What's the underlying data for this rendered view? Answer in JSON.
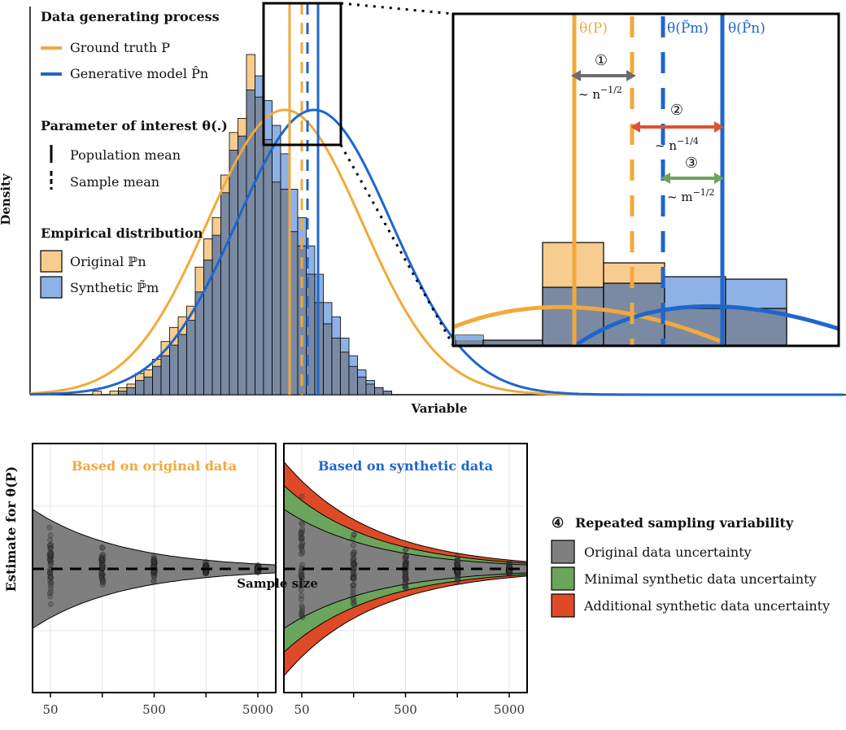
{
  "colors": {
    "ground_truth": "#F2A93B",
    "generative": "#1F66CC",
    "original_fill": "#F7CC8F",
    "synthetic_fill": "#8EB2E6",
    "overlap_fill": "#7A8AA3",
    "grey_arrow": "#6E6E6E",
    "red_arrow": "#E05233",
    "green_arrow": "#6FA35A",
    "band_grey": "#7F7F7F",
    "band_green": "#6BA55B",
    "band_red": "#DE4A28"
  },
  "legend": {
    "dgp_title": "Data generating process",
    "ground_truth_label": "Ground truth P",
    "generative_label": "Generative model P̂n",
    "param_title": "Parameter of interest θ(.)",
    "population_mean_label": "Population mean",
    "sample_mean_label": "Sample mean",
    "empirical_title": "Empirical distribution",
    "original_label": "Original ℙn",
    "synthetic_label": "Synthetic ℙ̃m"
  },
  "inset": {
    "theta_p_label": "θ(P)",
    "theta_pm_label": "θ(P̃m)",
    "theta_pn_label": "θ(P̂n)",
    "marker_1": "①",
    "rate_1": "~ n",
    "rate_1_exp": "−1/2",
    "marker_2": "②",
    "rate_2": "~ n",
    "rate_2_exp": "−1/4",
    "marker_3": "③",
    "rate_3": "~ m",
    "rate_3_exp": "−1/2"
  },
  "chart_data": [
    {
      "type": "bar",
      "title": "",
      "xlabel": "Variable",
      "ylabel": "Density",
      "description_of_axes": "no tick labels",
      "series": [
        {
          "name": "Original ℙn",
          "values": [
            0.01,
            0.0,
            0.01,
            0.02,
            0.03,
            0.06,
            0.07,
            0.1,
            0.15,
            0.19,
            0.22,
            0.25,
            0.36,
            0.44,
            0.5,
            0.62,
            0.74,
            0.78,
            0.96,
            0.84,
            0.72,
            0.6,
            0.58,
            0.46,
            0.42,
            0.34,
            0.26,
            0.2,
            0.16,
            0.12,
            0.08,
            0.05,
            0.03,
            0.02,
            0.01
          ]
        },
        {
          "name": "Synthetic ℙ̃m",
          "values": [
            0.0,
            0.0,
            0.0,
            0.01,
            0.02,
            0.04,
            0.05,
            0.08,
            0.11,
            0.14,
            0.17,
            0.21,
            0.29,
            0.38,
            0.45,
            0.57,
            0.69,
            0.73,
            0.86,
            0.9,
            0.83,
            0.76,
            0.68,
            0.58,
            0.5,
            0.42,
            0.34,
            0.26,
            0.22,
            0.16,
            0.11,
            0.07,
            0.04,
            0.02,
            0.01
          ]
        }
      ],
      "curves": [
        {
          "name": "Ground truth P",
          "mean": 0.0,
          "sd": 1.0
        },
        {
          "name": "Generative model P̂n",
          "mean": 0.25,
          "sd": 1.0
        }
      ]
    },
    {
      "type": "scatter",
      "panel_title": "Based on original data",
      "xlabel": "Sample size",
      "ylabel": "Estimate for θ(P)",
      "x_scale": "log",
      "x_ticks": [
        "50",
        "500",
        "5000"
      ],
      "sample_sizes": [
        50,
        158,
        500,
        1581,
        5000
      ],
      "bands": [
        {
          "name": "Original data uncertainty",
          "halfwidth_at_50": 0.4
        }
      ]
    },
    {
      "type": "scatter",
      "panel_title": "Based on synthetic data",
      "xlabel": "Sample size",
      "ylabel": "Estimate for θ(P)",
      "x_scale": "log",
      "x_ticks": [
        "50",
        "500",
        "5000"
      ],
      "sample_sizes": [
        50,
        158,
        500,
        1581,
        5000
      ],
      "bands": [
        {
          "name": "Original data uncertainty",
          "halfwidth_at_50": 0.4
        },
        {
          "name": "Minimal synthetic data uncertainty",
          "halfwidth_at_50": 0.56
        },
        {
          "name": "Additional synthetic data uncertainty",
          "halfwidth_at_50": 0.72
        }
      ]
    }
  ],
  "bottom_legend": {
    "marker": "④",
    "title": "Repeated sampling variability",
    "items": [
      "Original data uncertainty",
      "Minimal synthetic data uncertainty",
      "Additional synthetic data uncertainty"
    ]
  },
  "axis_shared": {
    "xlabel": "Sample size",
    "ylabel": "Estimate for θ(P)",
    "panel_left_title": "Based on original data",
    "panel_right_title": "Based on synthetic data"
  }
}
